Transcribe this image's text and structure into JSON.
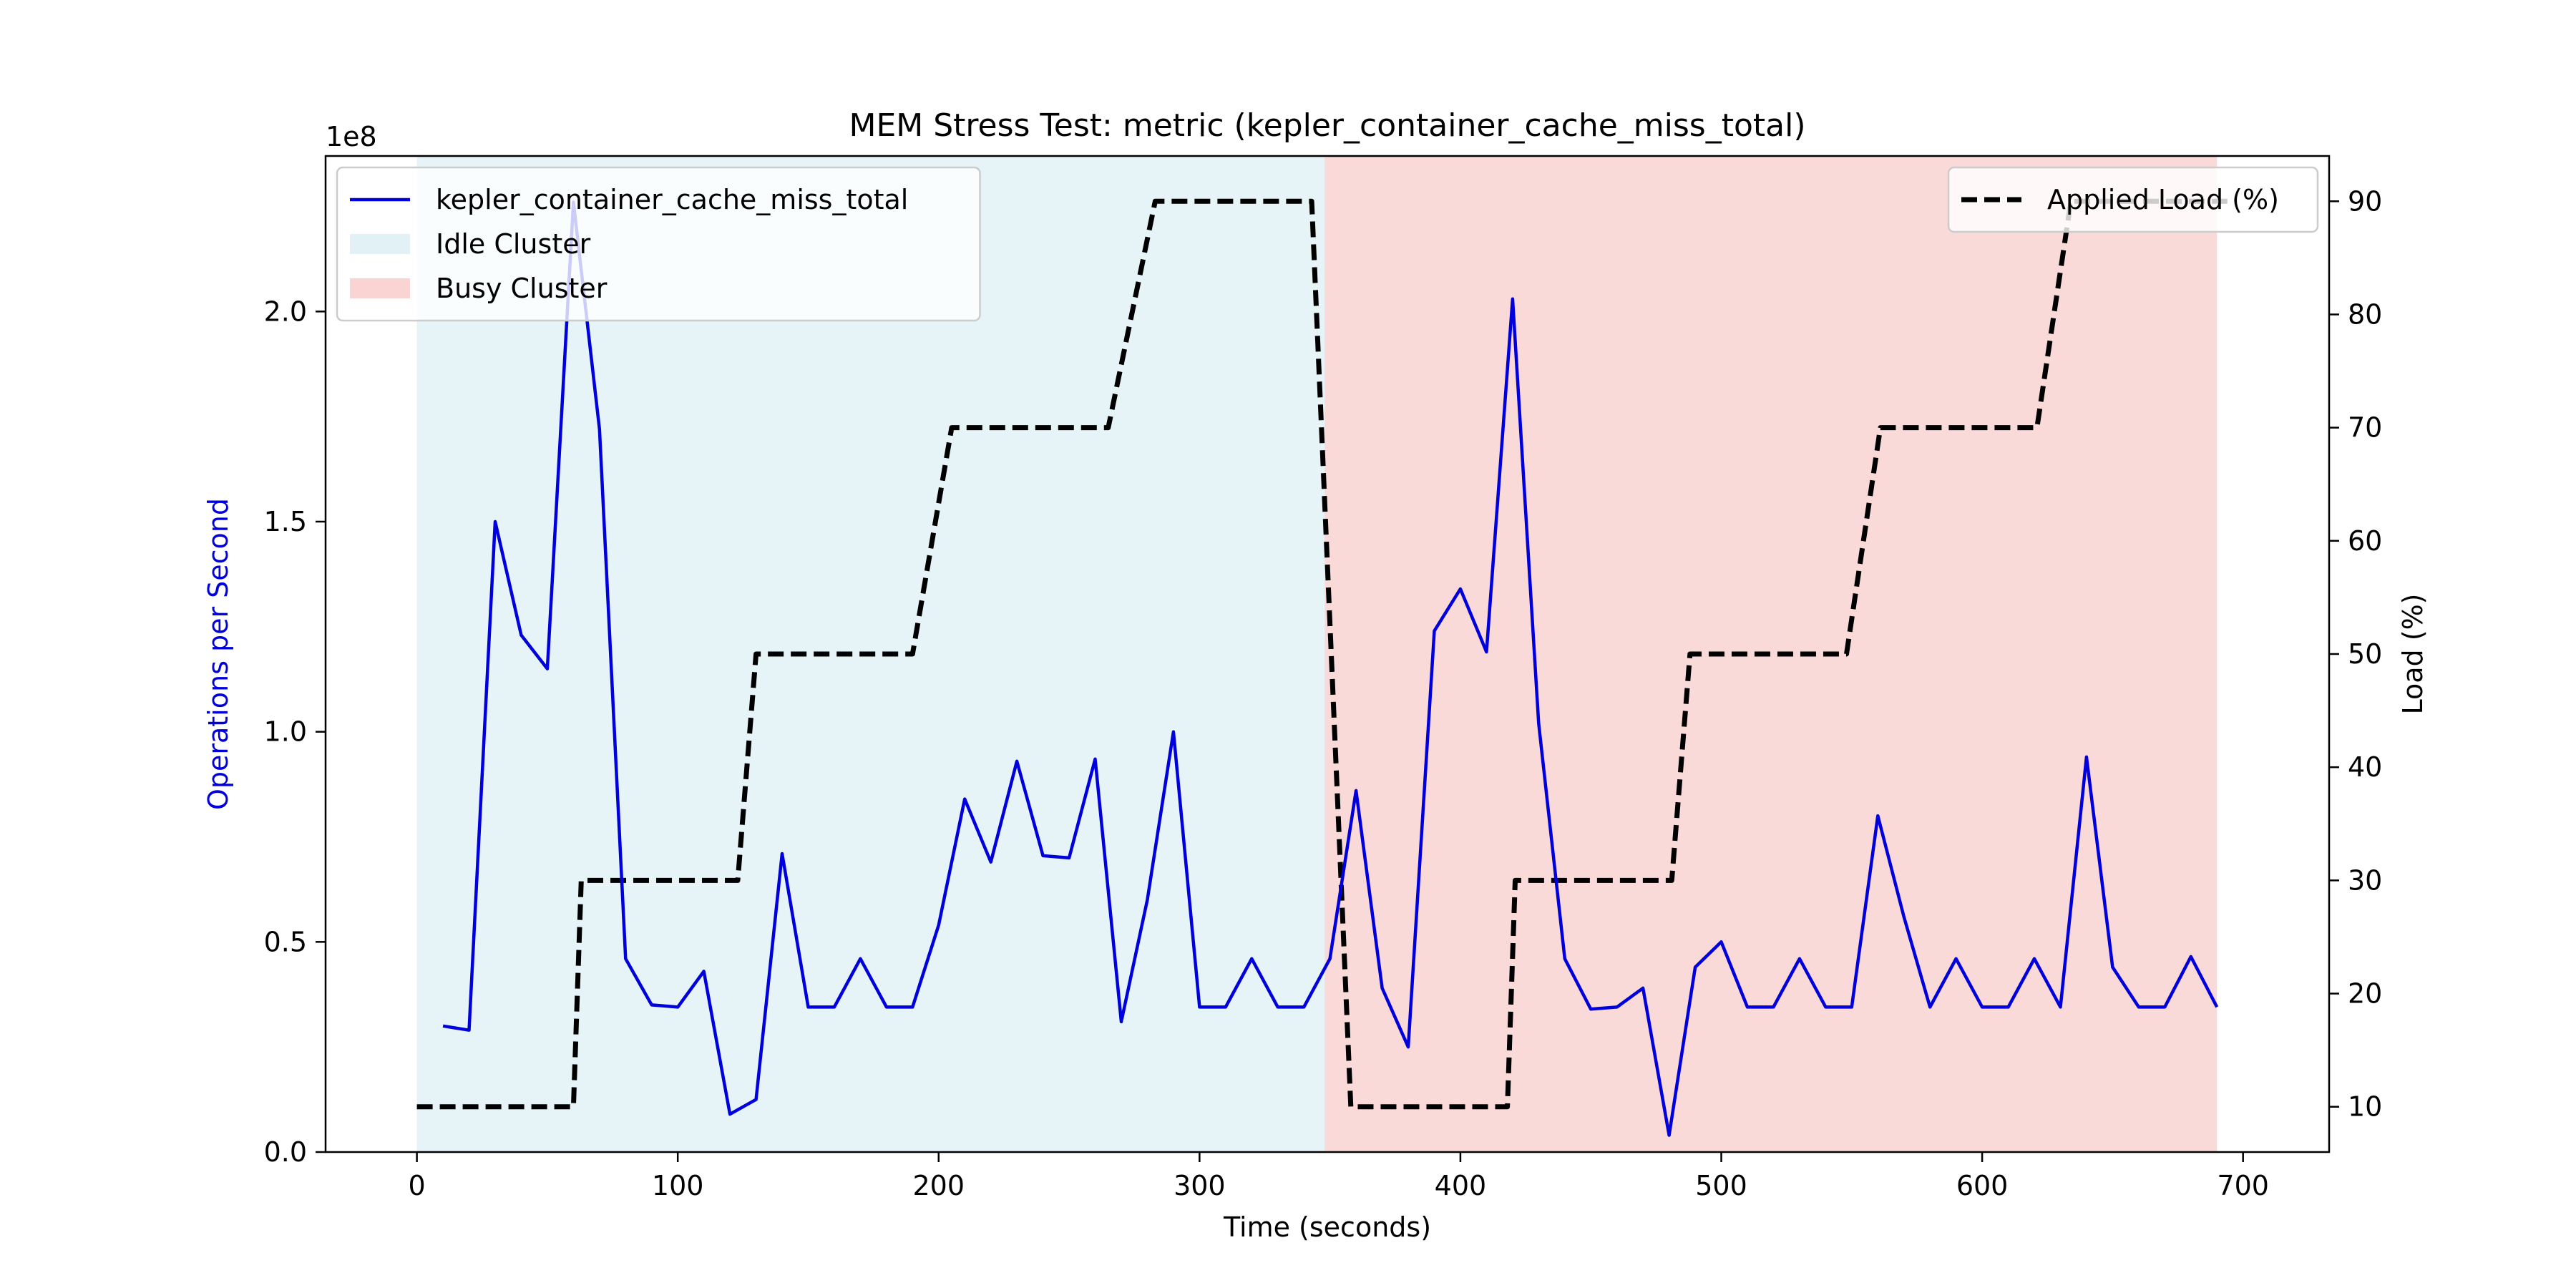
{
  "chart_data": {
    "type": "line",
    "title": "MEM Stress Test: metric (kepler_container_cache_miss_total)",
    "xlabel": "Time (seconds)",
    "ylabel": "Operations per Second",
    "y2label": "Load (%)",
    "y_offset_label": "1e8",
    "xlim": [
      -35,
      733
    ],
    "ylim": [
      0,
      2.37
    ],
    "y2lim": [
      6,
      94
    ],
    "x_ticks": [
      0,
      100,
      200,
      300,
      400,
      500,
      600,
      700
    ],
    "x_tick_labels": [
      "0",
      "100",
      "200",
      "300",
      "400",
      "500",
      "600",
      "700"
    ],
    "y_ticks": [
      0,
      0.5,
      1.0,
      1.5,
      2.0
    ],
    "y_tick_labels": [
      "0.0",
      "0.5",
      "1.0",
      "1.5",
      "2.0"
    ],
    "y2_ticks": [
      10,
      20,
      30,
      40,
      50,
      60,
      70,
      80,
      90
    ],
    "y2_tick_labels": [
      "10",
      "20",
      "30",
      "40",
      "50",
      "60",
      "70",
      "80",
      "90"
    ],
    "grid": false,
    "regions": [
      {
        "name": "Idle Cluster",
        "x_start": 0,
        "x_end": 348,
        "color": "#add8e6",
        "opacity": 0.3
      },
      {
        "name": "Busy Cluster",
        "x_start": 348,
        "x_end": 690,
        "color": "#f08080",
        "opacity": 0.3
      }
    ],
    "series": [
      {
        "name": "kepler_container_cache_miss_total",
        "axis": "left",
        "color": "#0000dd",
        "style": "solid",
        "x": [
          10,
          20,
          30,
          40,
          50,
          60,
          70,
          80,
          90,
          100,
          110,
          120,
          130,
          140,
          150,
          160,
          170,
          180,
          190,
          200,
          210,
          220,
          230,
          240,
          250,
          260,
          270,
          280,
          290,
          300,
          310,
          320,
          330,
          340,
          350,
          360,
          370,
          380,
          390,
          400,
          410,
          420,
          430,
          440,
          450,
          460,
          470,
          480,
          490,
          500,
          510,
          520,
          530,
          540,
          550,
          560,
          570,
          580,
          590,
          600,
          610,
          620,
          630,
          640,
          650,
          660,
          670,
          680,
          690
        ],
        "y": [
          0.3,
          0.29,
          1.5,
          1.23,
          1.15,
          2.26,
          1.72,
          0.46,
          0.35,
          0.345,
          0.43,
          0.09,
          0.125,
          0.71,
          0.345,
          0.345,
          0.46,
          0.345,
          0.345,
          0.54,
          0.84,
          0.69,
          0.93,
          0.705,
          0.7,
          0.935,
          0.31,
          0.6,
          1.0,
          0.345,
          0.345,
          0.46,
          0.345,
          0.345,
          0.46,
          0.86,
          0.39,
          0.25,
          1.24,
          1.34,
          1.19,
          2.03,
          1.02,
          0.46,
          0.34,
          0.345,
          0.39,
          0.04,
          0.44,
          0.5,
          0.345,
          0.345,
          0.46,
          0.345,
          0.345,
          0.8,
          0.56,
          0.345,
          0.46,
          0.345,
          0.345,
          0.46,
          0.345,
          0.94,
          0.44,
          0.345,
          0.345,
          0.465,
          0.345
        ]
      },
      {
        "name": "Applied Load (%)",
        "axis": "right",
        "color": "#000000",
        "style": "dashed",
        "x": [
          0,
          60,
          63,
          123,
          130,
          190,
          205,
          265,
          283,
          343,
          358,
          418,
          421,
          481,
          488,
          548,
          561,
          621,
          634,
          694
        ],
        "y": [
          10,
          10,
          30,
          30,
          50,
          50,
          70,
          70,
          90,
          90,
          10,
          10,
          30,
          30,
          50,
          50,
          70,
          70,
          90,
          90
        ]
      }
    ],
    "legend_left": {
      "placement": "upper-left",
      "entries": [
        {
          "label": "kepler_container_cache_miss_total",
          "kind": "line",
          "color": "#0000dd"
        },
        {
          "label": "Idle Cluster",
          "kind": "patch",
          "color": "#add8e6"
        },
        {
          "label": "Busy Cluster",
          "kind": "patch",
          "color": "#f08080"
        }
      ]
    },
    "legend_right": {
      "placement": "upper-right",
      "entries": [
        {
          "label": "Applied Load (%)",
          "kind": "dashed-line",
          "color": "#000000"
        }
      ]
    }
  }
}
